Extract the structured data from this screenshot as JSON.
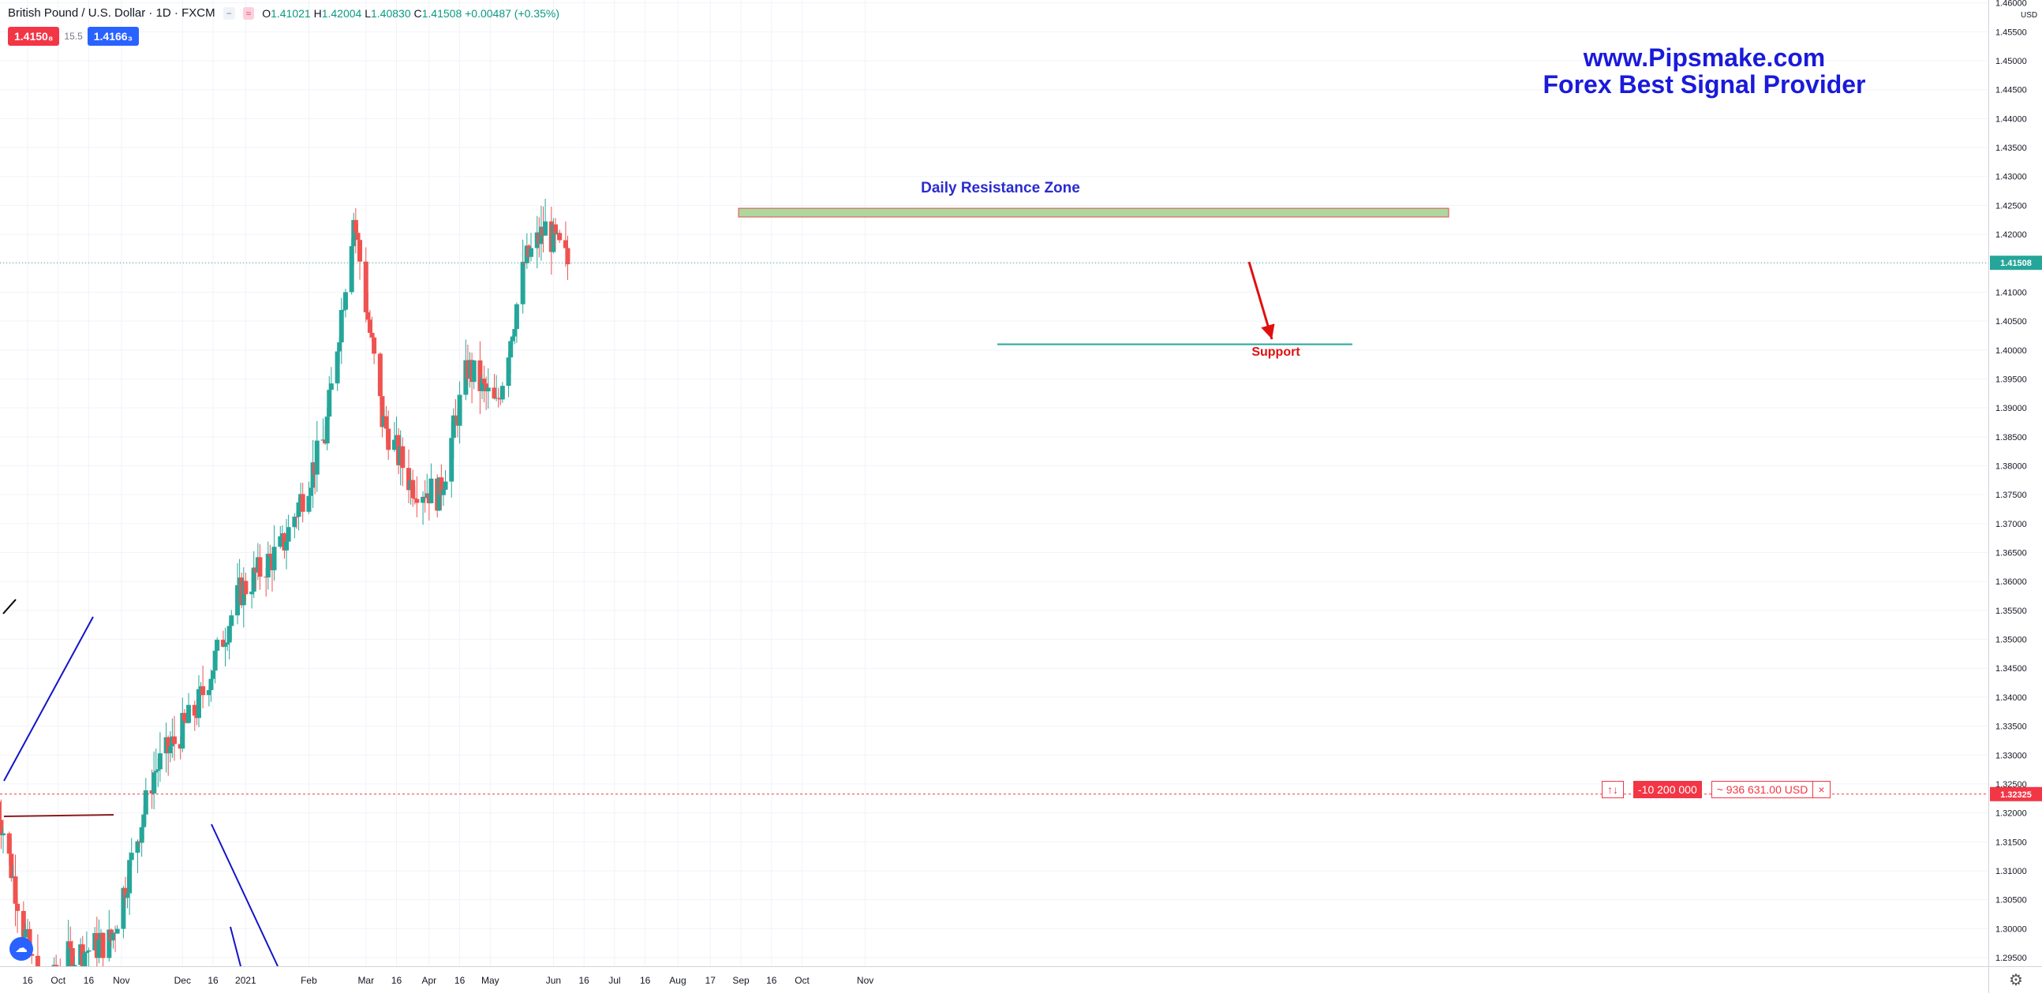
{
  "legend": {
    "symbol": "British Pound / U.S. Dollar · 1D · FXCM",
    "hide_icon": "minus-icon",
    "compare_icon": "approx-icon",
    "open_label": "O",
    "open": "1.41021",
    "high_label": "H",
    "high": "1.42004",
    "low_label": "L",
    "low": "1.40830",
    "close_label": "C",
    "close": "1.41508",
    "change": "+0.00487 (+0.35%)"
  },
  "trade": {
    "sell": "1.4150₈",
    "spread": "15.5",
    "buy": "1.4166₃"
  },
  "watermark": {
    "line1": "www.Pipsmake.com",
    "line2": "Forex Best Signal Provider"
  },
  "annotations": {
    "resistance": "Daily Resistance Zone",
    "support": "Support"
  },
  "price_scale": {
    "currency": "USD",
    "labels": [
      "1.46000",
      "1.45500",
      "1.45000",
      "1.44500",
      "1.44000",
      "1.43500",
      "1.43000",
      "1.42500",
      "1.42000",
      "1.41500",
      "1.41000",
      "1.40500",
      "1.40000",
      "1.39500",
      "1.39000",
      "1.38500",
      "1.38000",
      "1.37500",
      "1.37000",
      "1.36500",
      "1.36000",
      "1.35500",
      "1.35000",
      "1.34500",
      "1.34000",
      "1.33500",
      "1.33000",
      "1.32500",
      "1.32000",
      "1.31500",
      "1.31000",
      "1.30500",
      "1.30000",
      "1.29500"
    ],
    "last_price": "1.41508",
    "order_price": "1.32325"
  },
  "time_scale": {
    "labels": [
      "16",
      "Oct",
      "16",
      "Nov",
      "Dec",
      "16",
      "2021",
      "Feb",
      "Mar",
      "16",
      "Apr",
      "16",
      "May",
      "Jun",
      "16",
      "Jul",
      "16",
      "Aug",
      "17",
      "Sep",
      "16",
      "Oct",
      "Nov"
    ]
  },
  "order": {
    "arrows": "↑↓",
    "qty": "-10 200 000",
    "pl": "~ 936 631.00 USD",
    "close": "×"
  },
  "logo_icon": "tradingview-cloud-icon",
  "settings_icon": "gear-icon",
  "colors": {
    "up": "#26a69a",
    "down": "#ef5350",
    "resistance_fill": "#9fd18f",
    "support_line": "#26a69a",
    "arrow": "#e01010",
    "watermark": "#1a1adb"
  },
  "chart_data": {
    "type": "candlestick",
    "symbol": "GBPUSD",
    "timeframe": "1D",
    "ylim": [
      1.2935,
      1.4605
    ],
    "x": [
      "2020-09-01",
      "2020-09-22",
      "2020-10-06",
      "2020-10-27",
      "2020-11-17",
      "2020-12-08",
      "2020-12-29",
      "2021-01-19",
      "2021-02-09",
      "2021-02-23",
      "2021-03-09",
      "2021-03-23",
      "2021-04-06",
      "2021-04-20",
      "2021-05-04",
      "2021-05-18",
      "2021-05-28",
      "2021-06-08"
    ],
    "close": [
      1.322,
      1.287,
      1.295,
      1.298,
      1.327,
      1.338,
      1.358,
      1.366,
      1.385,
      1.423,
      1.388,
      1.377,
      1.375,
      1.397,
      1.39,
      1.415,
      1.421,
      1.415
    ],
    "resistance_zone": [
      1.423,
      1.4245
    ],
    "support_level": 1.401,
    "last_price": 1.41508,
    "order_line": 1.32325
  }
}
